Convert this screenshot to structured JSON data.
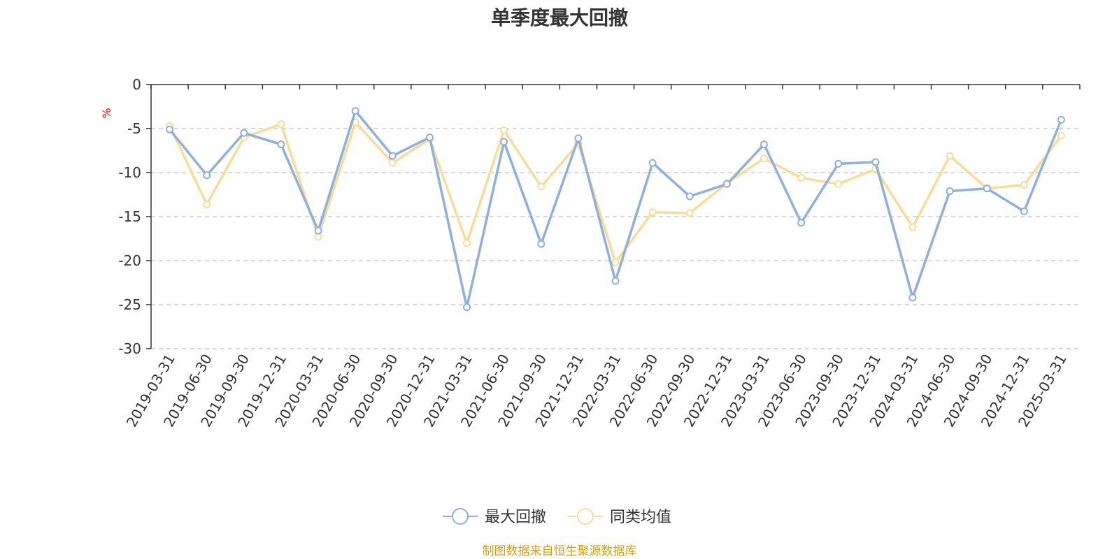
{
  "chart_data": {
    "type": "line",
    "title": "单季度最大回撤",
    "ylabel": "%",
    "ylim": [
      -30,
      0
    ],
    "yticks": [
      0,
      -5,
      -10,
      -15,
      -20,
      -25,
      -30
    ],
    "grid": true,
    "legend_position": "bottom-center",
    "categories": [
      "2019-03-31",
      "2019-06-30",
      "2019-09-30",
      "2019-12-31",
      "2020-03-31",
      "2020-06-30",
      "2020-09-30",
      "2020-12-31",
      "2021-03-31",
      "2021-06-30",
      "2021-09-30",
      "2021-12-31",
      "2022-03-31",
      "2022-06-30",
      "2022-09-30",
      "2022-12-31",
      "2023-03-31",
      "2023-06-30",
      "2023-09-30",
      "2023-12-31",
      "2024-03-31",
      "2024-06-30",
      "2024-09-30",
      "2024-12-31",
      "2025-03-31"
    ],
    "series": [
      {
        "name": "最大回撤",
        "color": "#8eb0d9",
        "values": [
          -5.1,
          -10.3,
          -5.5,
          -6.8,
          -16.6,
          -3.0,
          -8.1,
          -6.0,
          -25.3,
          -6.5,
          -18.1,
          -6.1,
          -22.3,
          -8.9,
          -12.7,
          -11.3,
          -6.8,
          -15.7,
          -9.0,
          -8.8,
          -24.2,
          -12.1,
          -11.8,
          -14.4,
          -4.0
        ]
      },
      {
        "name": "同类均值",
        "color": "#fadb9a",
        "values": [
          -4.7,
          -13.6,
          -6.0,
          -4.5,
          -17.3,
          -4.3,
          -8.9,
          -6.2,
          -18.0,
          -5.2,
          -11.6,
          -6.7,
          -20.2,
          -14.5,
          -14.6,
          -11.2,
          -8.4,
          -10.6,
          -11.3,
          -9.6,
          -16.2,
          -8.1,
          -11.8,
          -11.4,
          -5.8
        ]
      }
    ]
  },
  "source_note": "制图数据来自恒生聚源数据库"
}
